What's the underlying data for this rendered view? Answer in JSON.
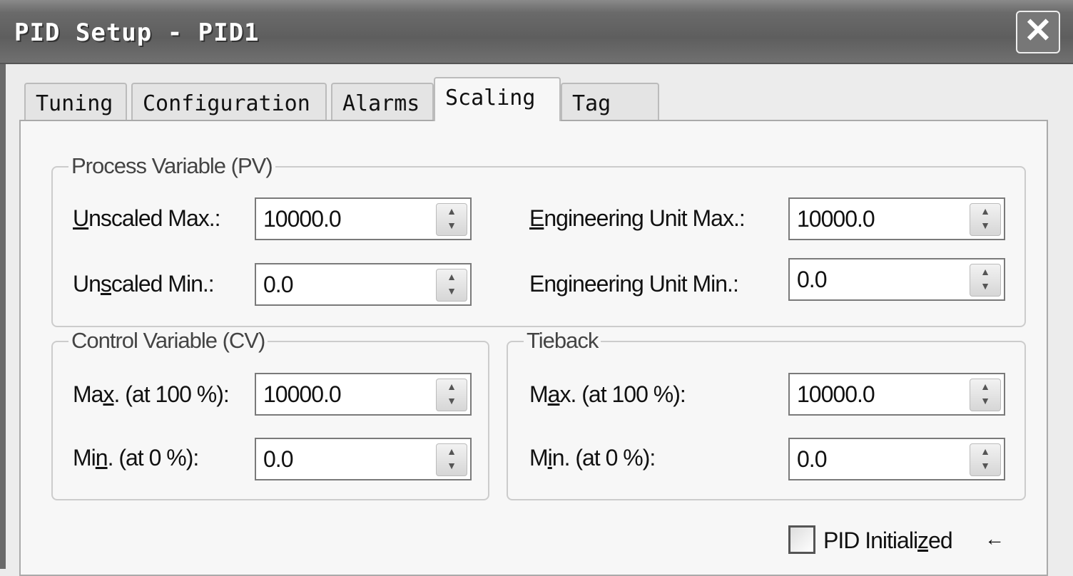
{
  "window": {
    "title": "PID Setup - PID1",
    "close_icon": "close-icon"
  },
  "tabs": [
    {
      "label": "Tuning"
    },
    {
      "label": "Configuration"
    },
    {
      "label": "Alarms"
    },
    {
      "label": "Scaling",
      "active": true
    },
    {
      "label": "Tag"
    }
  ],
  "pv": {
    "legend": "Process Variable (PV)",
    "unscaled_max": {
      "label": "Unscaled Max.:",
      "accel": "U",
      "value": "10000.0"
    },
    "unscaled_min": {
      "label": "Unscaled Min.:",
      "accel": "s",
      "value": "0.0"
    },
    "eu_max": {
      "label": "Engineering Unit Max.:",
      "accel": "E",
      "value": "10000.0"
    },
    "eu_min": {
      "label": "Engineering Unit Min.:",
      "accel": "",
      "value": "0.0"
    }
  },
  "cv": {
    "legend": "Control Variable (CV)",
    "max": {
      "label": "Max. (at 100 %):",
      "accel": "x",
      "value": "10000.0"
    },
    "min": {
      "label": "Min. (at 0 %):",
      "accel": "n",
      "value": "0.0"
    }
  },
  "tieback": {
    "legend": "Tieback",
    "max": {
      "label": "Max. (at 100 %):",
      "accel": "a",
      "value": "10000.0"
    },
    "min": {
      "label": "Min. (at 0 %):",
      "accel": "i",
      "value": "0.0"
    }
  },
  "pid_initialized": {
    "label": "PID Initialized",
    "accel": "z",
    "checked": false,
    "arrow_icon": "arrow-left-icon"
  }
}
